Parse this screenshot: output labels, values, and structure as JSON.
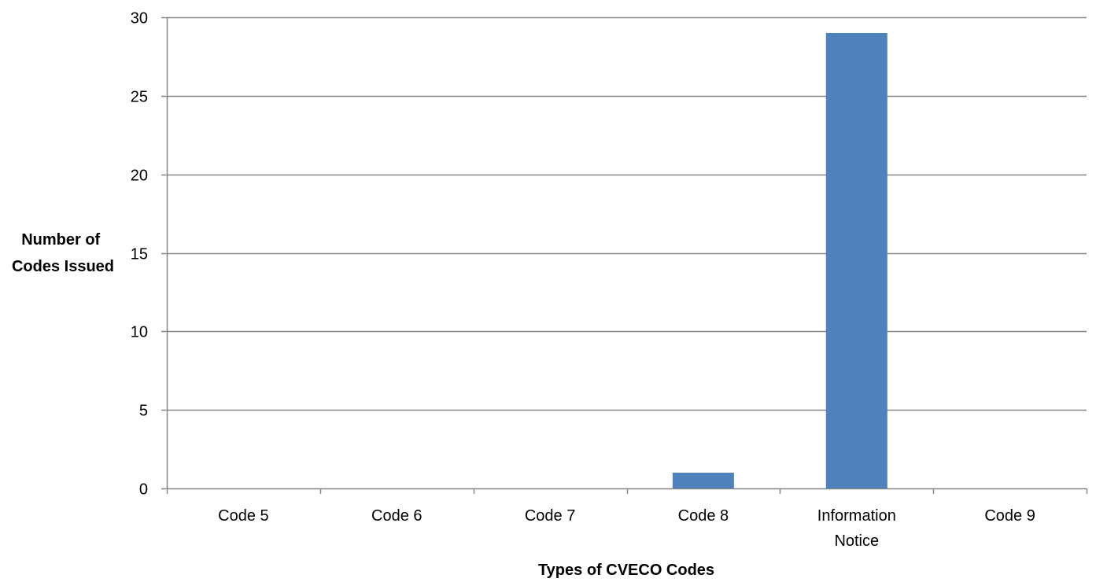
{
  "chart_data": {
    "type": "bar",
    "title": "",
    "xlabel": "Types of CVECO Codes",
    "ylabel_lines": [
      "Number of",
      "Codes Issued"
    ],
    "categories": [
      [
        "Code 5"
      ],
      [
        "Code 6"
      ],
      [
        "Code 7"
      ],
      [
        "Code 8"
      ],
      [
        "Information",
        "Notice"
      ],
      [
        "Code 9"
      ]
    ],
    "values": [
      0,
      0,
      0,
      1,
      29,
      0
    ],
    "ylim": [
      0,
      30
    ],
    "yticks": [
      0,
      5,
      10,
      15,
      20,
      25,
      30
    ],
    "grid": true,
    "legend": "none",
    "colors": {
      "bar": "#4f81bd",
      "grid": "#868686",
      "axis": "#868686",
      "text": "#000000"
    }
  }
}
